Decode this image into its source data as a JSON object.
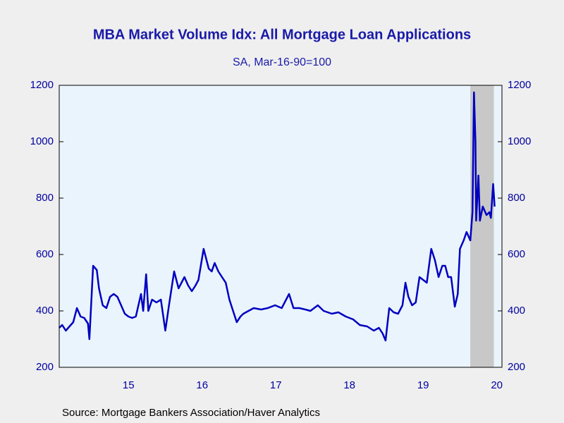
{
  "chart_data": {
    "type": "line",
    "title": "MBA Market Volume Idx: All Mortgage Loan Applications",
    "subtitle": "SA, Mar-16-90=100",
    "source": "Source:  Mortgage Bankers Association/Haver Analytics",
    "x": [
      2014.56,
      2014.6,
      2014.65,
      2014.7,
      2014.75,
      2014.8,
      2014.85,
      2014.9,
      2014.95,
      2014.97,
      2015.02,
      2015.07,
      2015.1,
      2015.15,
      2015.2,
      2015.25,
      2015.3,
      2015.35,
      2015.4,
      2015.45,
      2015.5,
      2015.55,
      2015.6,
      2015.67,
      2015.7,
      2015.74,
      2015.77,
      2015.82,
      2015.88,
      2015.94,
      2016.0,
      2016.05,
      2016.12,
      2016.18,
      2016.26,
      2016.31,
      2016.36,
      2016.41,
      2016.45,
      2016.52,
      2016.59,
      2016.63,
      2016.67,
      2016.72,
      2016.77,
      2016.82,
      2016.87,
      2016.92,
      2016.97,
      2017.02,
      2017.06,
      2017.13,
      2017.2,
      2017.3,
      2017.39,
      2017.49,
      2017.58,
      2017.68,
      2017.74,
      2017.82,
      2017.9,
      2017.97,
      2018.07,
      2018.15,
      2018.26,
      2018.35,
      2018.45,
      2018.55,
      2018.64,
      2018.74,
      2018.83,
      2018.9,
      2018.95,
      2018.99,
      2019.04,
      2019.1,
      2019.16,
      2019.22,
      2019.26,
      2019.3,
      2019.35,
      2019.4,
      2019.45,
      2019.5,
      2019.55,
      2019.61,
      2019.66,
      2019.71,
      2019.76,
      2019.8,
      2019.84,
      2019.88,
      2019.93,
      2019.97,
      2020.0,
      2020.05,
      2020.09,
      2020.14,
      2020.17,
      2020.19,
      2020.21,
      2020.22,
      2020.25,
      2020.27,
      2020.31,
      2020.36,
      2020.4,
      2020.42,
      2020.45,
      2020.47
    ],
    "values": [
      340,
      350,
      330,
      345,
      360,
      410,
      380,
      375,
      355,
      300,
      560,
      545,
      480,
      420,
      410,
      450,
      460,
      450,
      420,
      390,
      380,
      375,
      380,
      460,
      400,
      530,
      400,
      440,
      430,
      440,
      330,
      420,
      540,
      480,
      520,
      490,
      470,
      490,
      510,
      620,
      550,
      540,
      570,
      540,
      520,
      500,
      440,
      400,
      360,
      380,
      390,
      400,
      410,
      405,
      410,
      420,
      410,
      460,
      410,
      410,
      405,
      400,
      420,
      400,
      390,
      395,
      380,
      370,
      350,
      345,
      330,
      340,
      320,
      295,
      410,
      395,
      390,
      420,
      500,
      450,
      420,
      430,
      520,
      510,
      500,
      620,
      580,
      520,
      560,
      560,
      520,
      520,
      415,
      460,
      620,
      650,
      680,
      650,
      750,
      1175,
      1000,
      720,
      880,
      720,
      770,
      740,
      750,
      730,
      850,
      770
    ],
    "color": "#0000c0",
    "xlim": [
      2014.56,
      2020.57
    ],
    "xticks": [
      {
        "value": 2015.5,
        "label": "15"
      },
      {
        "value": 2016.5,
        "label": "16"
      },
      {
        "value": 2017.5,
        "label": "17"
      },
      {
        "value": 2018.5,
        "label": "18"
      },
      {
        "value": 2019.5,
        "label": "19"
      },
      {
        "value": 2020.5,
        "label": "20"
      }
    ],
    "ylim": [
      200,
      1200
    ],
    "yticks": [
      200,
      400,
      600,
      800,
      1000,
      1200
    ],
    "y2lim": [
      200,
      1200
    ],
    "y2ticks": [
      200,
      400,
      600,
      800,
      1000,
      1200
    ],
    "recession": [
      2020.14,
      2020.46
    ]
  }
}
